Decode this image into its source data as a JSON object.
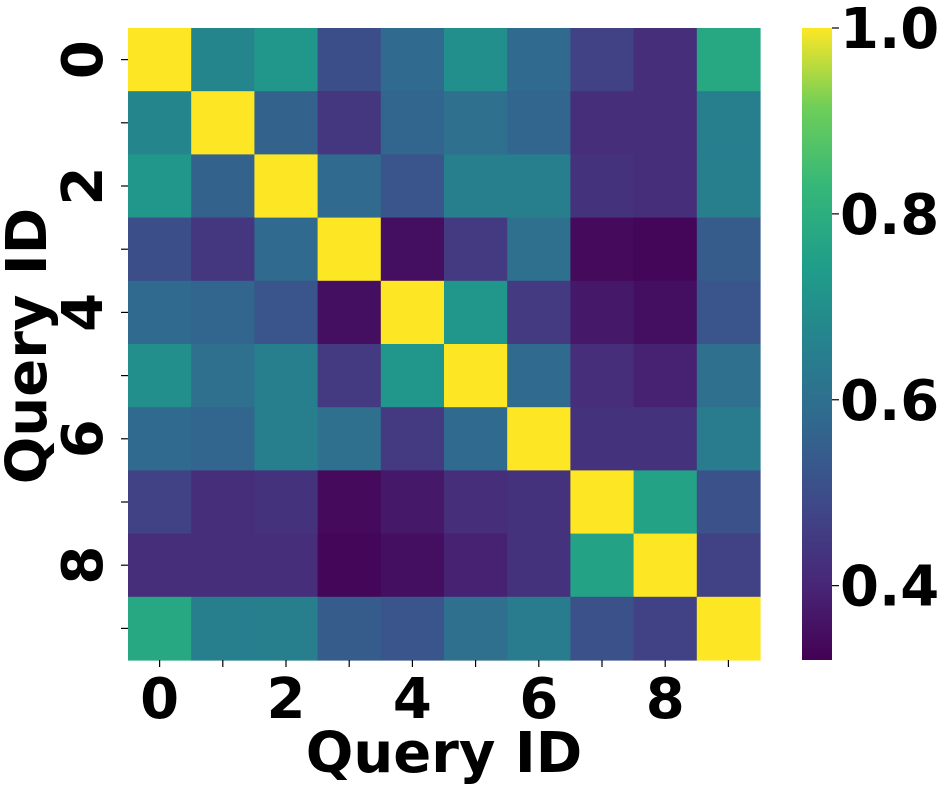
{
  "chart_data": {
    "type": "heatmap",
    "xlabel": "Query ID",
    "ylabel": "Query ID",
    "x_ticks": [
      0,
      1,
      2,
      3,
      4,
      5,
      6,
      7,
      8,
      9
    ],
    "y_ticks": [
      0,
      1,
      2,
      3,
      4,
      5,
      6,
      7,
      8,
      9
    ],
    "x_tick_labels": [
      "0",
      "",
      "2",
      "",
      "4",
      "",
      "6",
      "",
      "8",
      ""
    ],
    "y_tick_labels": [
      "0",
      "",
      "2",
      "",
      "4",
      "",
      "6",
      "",
      "8",
      ""
    ],
    "colormap": "viridis",
    "vmin": 0.32,
    "vmax": 1.0,
    "colorbar_ticks": [
      0.4,
      0.6,
      0.8,
      1.0
    ],
    "colorbar_tick_labels": [
      "0.4",
      "0.6",
      "0.8",
      "1.0"
    ],
    "matrix": [
      [
        1.0,
        0.67,
        0.72,
        0.5,
        0.58,
        0.7,
        0.58,
        0.47,
        0.42,
        0.78
      ],
      [
        0.67,
        1.0,
        0.56,
        0.44,
        0.57,
        0.6,
        0.57,
        0.42,
        0.42,
        0.65
      ],
      [
        0.72,
        0.56,
        1.0,
        0.58,
        0.52,
        0.65,
        0.65,
        0.43,
        0.42,
        0.65
      ],
      [
        0.5,
        0.44,
        0.58,
        1.0,
        0.35,
        0.45,
        0.6,
        0.34,
        0.33,
        0.54
      ],
      [
        0.58,
        0.57,
        0.52,
        0.35,
        1.0,
        0.72,
        0.45,
        0.37,
        0.35,
        0.52
      ],
      [
        0.7,
        0.6,
        0.65,
        0.45,
        0.72,
        1.0,
        0.58,
        0.42,
        0.39,
        0.6
      ],
      [
        0.58,
        0.57,
        0.65,
        0.6,
        0.45,
        0.58,
        1.0,
        0.43,
        0.43,
        0.64
      ],
      [
        0.47,
        0.42,
        0.43,
        0.34,
        0.37,
        0.42,
        0.43,
        1.0,
        0.76,
        0.51
      ],
      [
        0.42,
        0.42,
        0.42,
        0.33,
        0.35,
        0.39,
        0.43,
        0.76,
        1.0,
        0.47
      ],
      [
        0.78,
        0.65,
        0.65,
        0.54,
        0.52,
        0.6,
        0.64,
        0.51,
        0.47,
        1.0
      ]
    ]
  }
}
